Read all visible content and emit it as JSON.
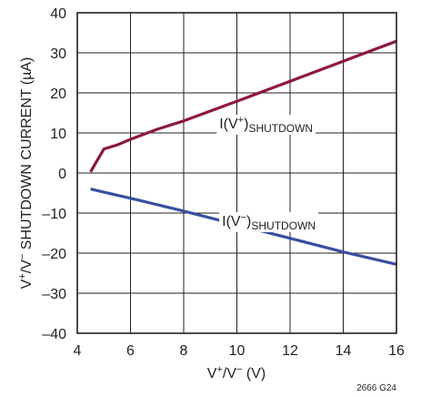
{
  "chart_data": {
    "type": "line",
    "title": "",
    "xlabel_parts": {
      "base": "V",
      "sup1": "+",
      "mid": "/V",
      "sup2": "−",
      "tail": " (V)"
    },
    "ylabel_parts": {
      "base": "V",
      "sup1": "+",
      "mid": "/V",
      "sup2": "−",
      "tail": " SHUTDOWN CURRENT (µA)"
    },
    "xlim": [
      4,
      16
    ],
    "ylim": [
      -40,
      40
    ],
    "x_ticks": [
      4,
      6,
      8,
      10,
      12,
      14,
      16
    ],
    "x_tick_labels": [
      "4",
      "6",
      "8",
      "10",
      "12",
      "14",
      "16"
    ],
    "y_ticks": [
      -40,
      -30,
      -20,
      -10,
      0,
      10,
      20,
      30,
      40
    ],
    "y_tick_labels": [
      "–40",
      "–30",
      "–20",
      "–10",
      "0",
      "10",
      "20",
      "30",
      "40"
    ],
    "grid": true,
    "series": [
      {
        "color": "#8b1a3c",
        "x": [
          4.5,
          5.0,
          5.5,
          6.0,
          7.0,
          8.0,
          10.0,
          12.0,
          14.0,
          16.0
        ],
        "y": [
          0.3,
          6.0,
          7.0,
          8.4,
          10.9,
          13.0,
          17.9,
          22.9,
          27.9,
          32.9
        ]
      },
      {
        "color": "#3a4fa0",
        "x": [
          4.5,
          5.0,
          6.0,
          8.0,
          10.0,
          12.0,
          14.0,
          16.0
        ],
        "y": [
          -4.0,
          -4.8,
          -6.3,
          -9.5,
          -12.9,
          -16.3,
          -19.7,
          -22.8
        ]
      }
    ],
    "annotations": [
      {
        "base": "I(V",
        "sup": "+",
        "close": ")",
        "sub": "SHUTDOWN",
        "x": 11.1,
        "y": 12.5
      },
      {
        "base": "I(V",
        "sup": "−",
        "close": ")",
        "sub": "SHUTDOWN",
        "x": 11.2,
        "y": -11.8
      }
    ],
    "figure_id": "2666 G24"
  }
}
